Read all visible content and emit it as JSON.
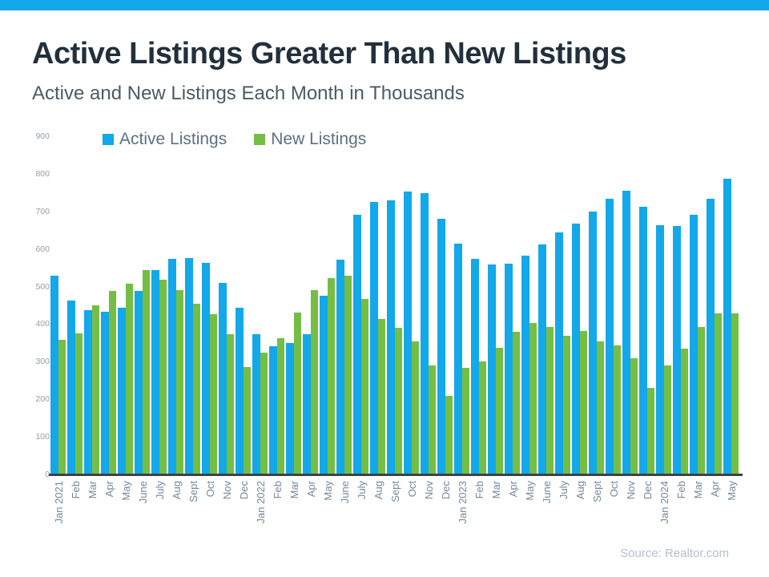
{
  "header": {
    "title": "Active Listings Greater Than New Listings",
    "subtitle": "Active and New Listings Each Month in Thousands"
  },
  "footer": {
    "source": "Source: Realtor.com"
  },
  "colors": {
    "accent_bar": "#12a8e9",
    "active_series": "#12a8e9",
    "new_series": "#75be44",
    "axis_line": "#3d4249",
    "title_text": "#22303c",
    "subtitle_text": "#4c5a64",
    "x_label_text": "#74889b",
    "y_label_text": "#969da5",
    "source_text": "#b4bfca"
  },
  "chart_data": {
    "type": "bar",
    "title": "Active Listings Greater Than New Listings",
    "subtitle": "Active and New Listings Each Month in Thousands",
    "unit": "thousands",
    "grid": false,
    "legend_position": "top-left",
    "ylim": [
      0,
      900
    ],
    "yticks": [
      0,
      100,
      200,
      300,
      400,
      500,
      600,
      700,
      800,
      900
    ],
    "categories": [
      "Jan 2021",
      "Feb",
      "Mar",
      "Apr",
      "May",
      "June",
      "July",
      "Aug",
      "Sept",
      "Oct",
      "Nov",
      "Dec",
      "Jan 2022",
      "Feb",
      "Mar",
      "Apr",
      "May",
      "June",
      "July",
      "Aug",
      "Sept",
      "Oct",
      "Nov",
      "Dec",
      "Jan 2023",
      "Feb",
      "Mar",
      "Apr",
      "May",
      "June",
      "July",
      "Aug",
      "Sept",
      "Oct",
      "Nov",
      "Dec",
      "Jan 2024",
      "Feb",
      "Mar",
      "Apr",
      "May"
    ],
    "series": [
      {
        "name": "Active Listings",
        "color": "#12a8e9",
        "values": [
          529,
          463,
          437,
          432,
          444,
          489,
          543,
          573,
          576,
          562,
          510,
          444,
          373,
          342,
          349,
          374,
          475,
          571,
          690,
          726,
          729,
          752,
          749,
          681,
          614,
          574,
          559,
          561,
          582,
          612,
          644,
          667,
          699,
          734,
          754,
          712,
          664,
          662,
          692,
          733,
          788
        ]
      },
      {
        "name": "New Listings",
        "color": "#75be44",
        "values": [
          358,
          375,
          451,
          489,
          508,
          543,
          518,
          491,
          454,
          426,
          373,
          285,
          324,
          363,
          431,
          491,
          523,
          529,
          468,
          414,
          390,
          354,
          291,
          210,
          283,
          301,
          338,
          380,
          404,
          393,
          368,
          381,
          354,
          344,
          310,
          230,
          290,
          335,
          392,
          429,
          429
        ]
      }
    ],
    "source": "Source: Realtor.com"
  }
}
